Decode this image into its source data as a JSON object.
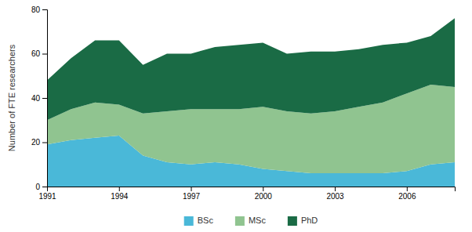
{
  "chart_data": {
    "type": "area",
    "stacked": true,
    "x": [
      1991,
      1992,
      1993,
      1994,
      1995,
      1996,
      1997,
      1998,
      1999,
      2000,
      2001,
      2002,
      2003,
      2004,
      2005,
      2006,
      2007,
      2008
    ],
    "series": [
      {
        "name": "BSc",
        "color": "#4ab8d8",
        "values": [
          19,
          21,
          22,
          23,
          14,
          11,
          10,
          11,
          10,
          8,
          7,
          6,
          6,
          6,
          6,
          7,
          10,
          11
        ]
      },
      {
        "name": "MSc",
        "color": "#90c490",
        "values": [
          11,
          14,
          16,
          14,
          19,
          23,
          25,
          24,
          25,
          28,
          27,
          27,
          28,
          30,
          32,
          35,
          36,
          34
        ]
      },
      {
        "name": "PhD",
        "color": "#1a6b45",
        "values": [
          18,
          23,
          28,
          29,
          22,
          26,
          25,
          28,
          29,
          29,
          26,
          28,
          27,
          26,
          26,
          23,
          22,
          31
        ]
      }
    ],
    "ylabel": "Number of FTE researchers",
    "xlim": [
      1991,
      2008
    ],
    "xticks": [
      1991,
      1994,
      1997,
      2000,
      2003,
      2006
    ],
    "ylim": [
      0,
      80
    ],
    "yticks": [
      0,
      20,
      40,
      60,
      80
    ],
    "grid": false,
    "legend": "bottom"
  }
}
